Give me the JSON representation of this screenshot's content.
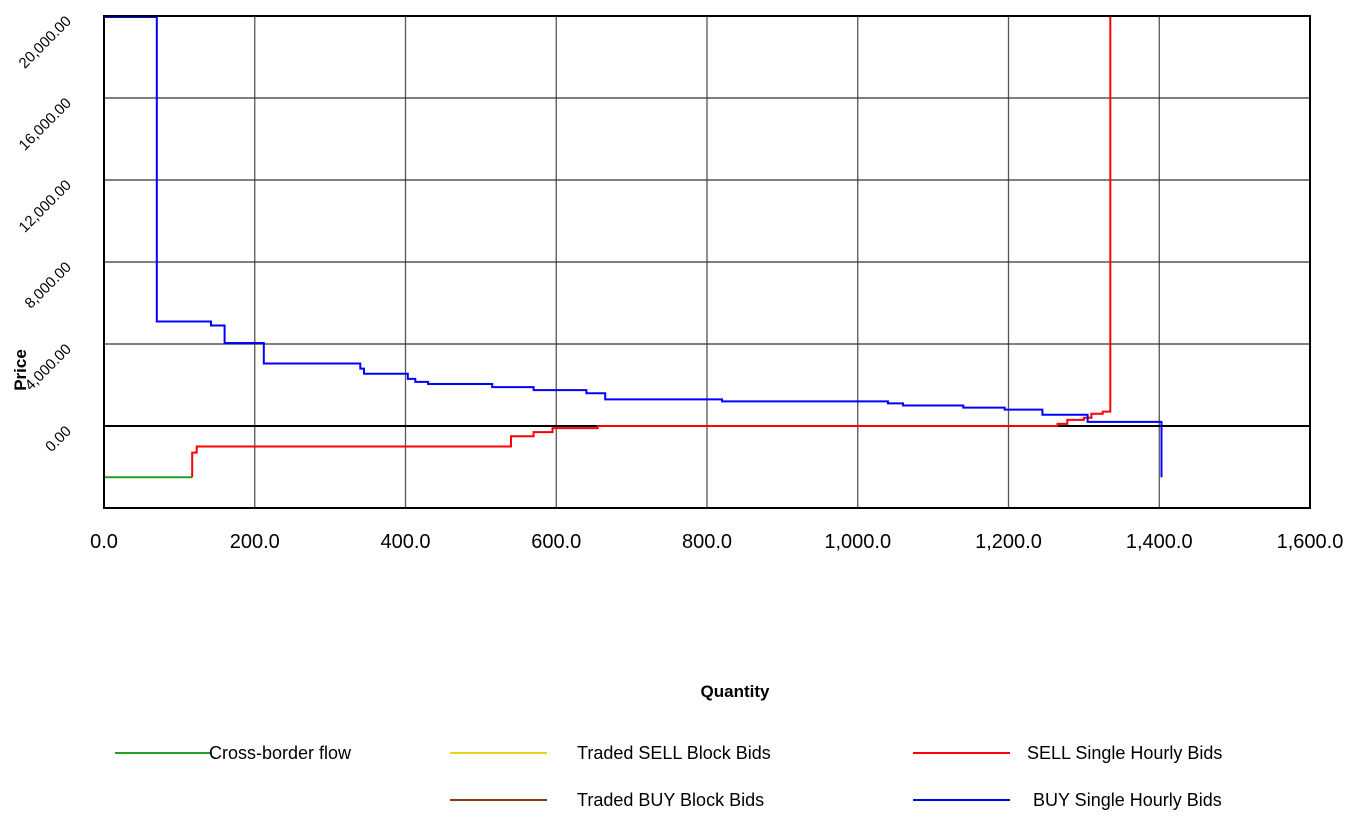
{
  "chart_data": {
    "type": "line",
    "xlabel": "Quantity",
    "ylabel": "Price",
    "xlim": [
      0,
      1600
    ],
    "ylim": [
      -4000,
      20000
    ],
    "x_ticks": [
      0,
      200,
      400,
      600,
      800,
      1000,
      1200,
      1400,
      1600
    ],
    "x_tick_labels": [
      "0.0",
      "200.0",
      "400.0",
      "600.0",
      "800.0",
      "1,000.0",
      "1,200.0",
      "1,400.0",
      "1,600.0"
    ],
    "y_ticks": [
      0,
      4000,
      8000,
      12000,
      16000,
      20000
    ],
    "y_tick_labels": [
      "0.00",
      "4,000.00",
      "8,000.00",
      "12,000.00",
      "16,000.00",
      "20,000.00"
    ],
    "grid": true,
    "legend_position": "bottom",
    "series": [
      {
        "name": "Cross-border flow",
        "color": "#22a022",
        "points": [
          [
            0,
            -2500
          ],
          [
            117,
            -2500
          ]
        ]
      },
      {
        "name": "Traded SELL Block Bids",
        "color": "#e8d21c",
        "points": []
      },
      {
        "name": "SELL Single Hourly Bids",
        "color": "#ff0000",
        "points": [
          [
            117,
            -2500
          ],
          [
            117,
            -1300
          ],
          [
            123,
            -1300
          ],
          [
            123,
            -1000
          ],
          [
            540,
            -1000
          ],
          [
            540,
            -500
          ],
          [
            570,
            -500
          ],
          [
            570,
            -300
          ],
          [
            595,
            -300
          ],
          [
            595,
            -100
          ],
          [
            655,
            -100
          ],
          [
            655,
            0
          ],
          [
            1265,
            0
          ],
          [
            1265,
            100
          ],
          [
            1278,
            100
          ],
          [
            1278,
            300
          ],
          [
            1300,
            300
          ],
          [
            1300,
            400
          ],
          [
            1310,
            400
          ],
          [
            1310,
            600
          ],
          [
            1325,
            600
          ],
          [
            1325,
            700
          ],
          [
            1335,
            700
          ],
          [
            1335,
            20000
          ]
        ]
      },
      {
        "name": "Traded BUY Block Bids",
        "color": "#8b3a0f",
        "points": [
          [
            0,
            20000
          ],
          [
            70,
            20000
          ]
        ]
      },
      {
        "name": "BUY Single Hourly Bids",
        "color": "#0000ff",
        "points": [
          [
            0,
            19950
          ],
          [
            70,
            19950
          ],
          [
            70,
            5100
          ],
          [
            142,
            5100
          ],
          [
            142,
            4900
          ],
          [
            160,
            4900
          ],
          [
            160,
            4050
          ],
          [
            212,
            4050
          ],
          [
            212,
            3050
          ],
          [
            340,
            3050
          ],
          [
            340,
            2800
          ],
          [
            345,
            2800
          ],
          [
            345,
            2550
          ],
          [
            403,
            2550
          ],
          [
            403,
            2300
          ],
          [
            413,
            2300
          ],
          [
            413,
            2150
          ],
          [
            430,
            2150
          ],
          [
            430,
            2050
          ],
          [
            515,
            2050
          ],
          [
            515,
            1900
          ],
          [
            570,
            1900
          ],
          [
            570,
            1750
          ],
          [
            640,
            1750
          ],
          [
            640,
            1600
          ],
          [
            665,
            1600
          ],
          [
            665,
            1300
          ],
          [
            820,
            1300
          ],
          [
            820,
            1200
          ],
          [
            1040,
            1200
          ],
          [
            1040,
            1100
          ],
          [
            1060,
            1100
          ],
          [
            1060,
            1000
          ],
          [
            1140,
            1000
          ],
          [
            1140,
            900
          ],
          [
            1195,
            900
          ],
          [
            1195,
            800
          ],
          [
            1245,
            800
          ],
          [
            1245,
            550
          ],
          [
            1305,
            550
          ],
          [
            1305,
            200
          ],
          [
            1403,
            200
          ],
          [
            1403,
            -2500
          ]
        ]
      }
    ]
  }
}
